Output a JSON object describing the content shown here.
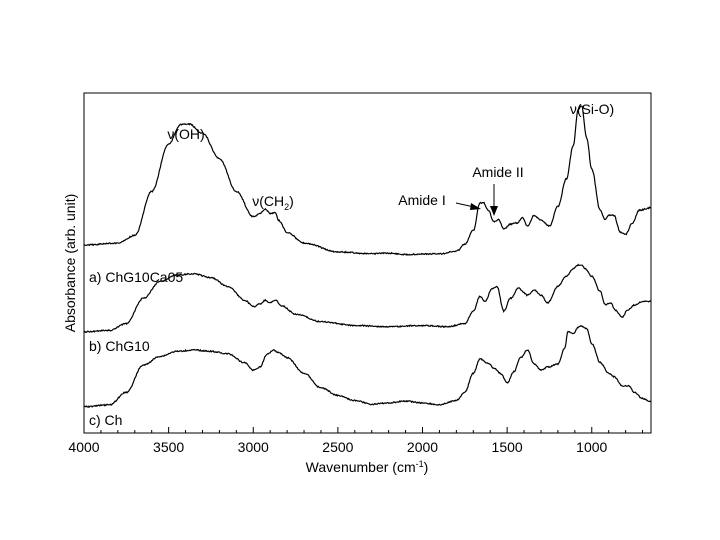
{
  "chart_data": {
    "type": "line",
    "xlabel": "Wavenumber (cm",
    "xlabel_sup": "-1",
    "xlabel_end": ")",
    "ylabel": "Absorbance (arb. unit)",
    "xlim": [
      4000,
      650
    ],
    "x_reversed": true,
    "x_ticks": [
      4000,
      3500,
      3000,
      2500,
      2000,
      1500,
      1000
    ],
    "y_ticks_shown": false,
    "grid": false,
    "series": [
      {
        "name": "a) ChG10Ca05",
        "points": [
          [
            4000,
            0.35
          ],
          [
            3800,
            0.38
          ],
          [
            3700,
            0.5
          ],
          [
            3600,
            1.2
          ],
          [
            3500,
            1.95
          ],
          [
            3430,
            2.26
          ],
          [
            3380,
            2.27
          ],
          [
            3300,
            2.12
          ],
          [
            3200,
            1.72
          ],
          [
            3100,
            1.2
          ],
          [
            3000,
            0.8
          ],
          [
            2960,
            0.85
          ],
          [
            2930,
            0.92
          ],
          [
            2900,
            0.85
          ],
          [
            2870,
            0.86
          ],
          [
            2850,
            0.74
          ],
          [
            2800,
            0.55
          ],
          [
            2700,
            0.38
          ],
          [
            2500,
            0.24
          ],
          [
            2300,
            0.21
          ],
          [
            2200,
            0.22
          ],
          [
            2100,
            0.2
          ],
          [
            1900,
            0.21
          ],
          [
            1800,
            0.25
          ],
          [
            1750,
            0.36
          ],
          [
            1700,
            0.58
          ],
          [
            1660,
            1.02
          ],
          [
            1640,
            1.02
          ],
          [
            1610,
            0.9
          ],
          [
            1580,
            0.72
          ],
          [
            1550,
            0.75
          ],
          [
            1520,
            0.6
          ],
          [
            1480,
            0.68
          ],
          [
            1440,
            0.7
          ],
          [
            1410,
            0.78
          ],
          [
            1380,
            0.65
          ],
          [
            1340,
            0.82
          ],
          [
            1300,
            0.74
          ],
          [
            1250,
            0.65
          ],
          [
            1200,
            0.96
          ],
          [
            1150,
            1.4
          ],
          [
            1110,
            1.92
          ],
          [
            1080,
            2.5
          ],
          [
            1060,
            2.56
          ],
          [
            1030,
            2.05
          ],
          [
            1000,
            1.55
          ],
          [
            950,
            0.9
          ],
          [
            920,
            0.75
          ],
          [
            900,
            0.82
          ],
          [
            870,
            0.82
          ],
          [
            830,
            0.55
          ],
          [
            800,
            0.52
          ],
          [
            760,
            0.7
          ],
          [
            720,
            0.9
          ],
          [
            680,
            0.92
          ],
          [
            650,
            0.95
          ]
        ]
      },
      {
        "name": "b) ChG10",
        "points": [
          [
            4000,
            0.02
          ],
          [
            3850,
            0.04
          ],
          [
            3750,
            0.15
          ],
          [
            3650,
            0.55
          ],
          [
            3550,
            0.82
          ],
          [
            3450,
            0.92
          ],
          [
            3350,
            0.94
          ],
          [
            3250,
            0.88
          ],
          [
            3150,
            0.74
          ],
          [
            3050,
            0.52
          ],
          [
            3000,
            0.42
          ],
          [
            2960,
            0.46
          ],
          [
            2930,
            0.52
          ],
          [
            2900,
            0.48
          ],
          [
            2870,
            0.52
          ],
          [
            2830,
            0.43
          ],
          [
            2750,
            0.3
          ],
          [
            2600,
            0.18
          ],
          [
            2400,
            0.12
          ],
          [
            2200,
            0.1
          ],
          [
            2000,
            0.12
          ],
          [
            1850,
            0.1
          ],
          [
            1750,
            0.15
          ],
          [
            1700,
            0.35
          ],
          [
            1660,
            0.58
          ],
          [
            1630,
            0.5
          ],
          [
            1590,
            0.7
          ],
          [
            1560,
            0.74
          ],
          [
            1520,
            0.35
          ],
          [
            1480,
            0.55
          ],
          [
            1430,
            0.72
          ],
          [
            1410,
            0.66
          ],
          [
            1380,
            0.6
          ],
          [
            1340,
            0.68
          ],
          [
            1300,
            0.6
          ],
          [
            1260,
            0.48
          ],
          [
            1200,
            0.74
          ],
          [
            1150,
            0.9
          ],
          [
            1110,
            1.02
          ],
          [
            1080,
            1.08
          ],
          [
            1060,
            1.08
          ],
          [
            1040,
            1.02
          ],
          [
            1000,
            0.9
          ],
          [
            950,
            0.66
          ],
          [
            920,
            0.45
          ],
          [
            890,
            0.48
          ],
          [
            860,
            0.36
          ],
          [
            820,
            0.25
          ],
          [
            790,
            0.36
          ],
          [
            750,
            0.44
          ],
          [
            700,
            0.5
          ],
          [
            650,
            0.5
          ]
        ]
      },
      {
        "name": "c) Ch",
        "points": [
          [
            4000,
            0.02
          ],
          [
            3850,
            0.05
          ],
          [
            3750,
            0.25
          ],
          [
            3650,
            0.68
          ],
          [
            3550,
            0.82
          ],
          [
            3450,
            0.9
          ],
          [
            3350,
            0.92
          ],
          [
            3250,
            0.9
          ],
          [
            3150,
            0.86
          ],
          [
            3050,
            0.72
          ],
          [
            3000,
            0.6
          ],
          [
            2960,
            0.65
          ],
          [
            2920,
            0.85
          ],
          [
            2880,
            0.92
          ],
          [
            2850,
            0.88
          ],
          [
            2800,
            0.8
          ],
          [
            2700,
            0.55
          ],
          [
            2600,
            0.32
          ],
          [
            2500,
            0.2
          ],
          [
            2400,
            0.12
          ],
          [
            2300,
            0.06
          ],
          [
            2200,
            0.08
          ],
          [
            2100,
            0.11
          ],
          [
            2000,
            0.08
          ],
          [
            1900,
            0.05
          ],
          [
            1800,
            0.12
          ],
          [
            1750,
            0.25
          ],
          [
            1700,
            0.55
          ],
          [
            1660,
            0.78
          ],
          [
            1620,
            0.72
          ],
          [
            1570,
            0.62
          ],
          [
            1540,
            0.55
          ],
          [
            1500,
            0.4
          ],
          [
            1460,
            0.58
          ],
          [
            1420,
            0.8
          ],
          [
            1380,
            0.92
          ],
          [
            1340,
            0.7
          ],
          [
            1300,
            0.6
          ],
          [
            1260,
            0.65
          ],
          [
            1200,
            0.7
          ],
          [
            1160,
            0.95
          ],
          [
            1140,
            1.22
          ],
          [
            1110,
            1.18
          ],
          [
            1080,
            1.28
          ],
          [
            1060,
            1.3
          ],
          [
            1030,
            1.26
          ],
          [
            1000,
            1.02
          ],
          [
            950,
            0.72
          ],
          [
            900,
            0.55
          ],
          [
            870,
            0.5
          ],
          [
            820,
            0.35
          ],
          [
            780,
            0.35
          ],
          [
            750,
            0.25
          ],
          [
            700,
            0.15
          ],
          [
            650,
            0.1
          ]
        ]
      }
    ],
    "annotations": [
      {
        "id": "oh",
        "text": "ν(OH)"
      },
      {
        "id": "ch2",
        "text": "ν(CH",
        "sub": "2",
        "end": ")"
      },
      {
        "id": "amide1",
        "text": "Amide I"
      },
      {
        "id": "amide2",
        "text": "Amide II"
      },
      {
        "id": "sio",
        "text": "ν(Si-O)"
      }
    ]
  }
}
